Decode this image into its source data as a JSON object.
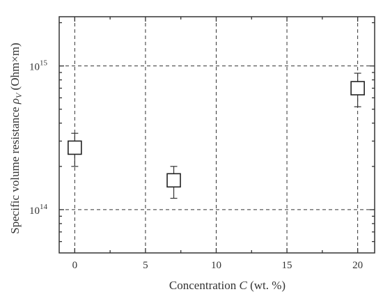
{
  "chart_data": {
    "type": "scatter",
    "xlabel_prefix": "Concentration ",
    "xlabel_var": "C",
    "xlabel_suffix": " (wt. %)",
    "ylabel_prefix": "Specific volume resistance ",
    "ylabel_var": "ρ",
    "ylabel_sub": "V",
    "ylabel_suffix": " (Ohm×m)",
    "x_ticks": [
      0,
      5,
      10,
      15,
      20
    ],
    "y_ticks": [
      {
        "value": 100000000000000.0,
        "base": "10",
        "exp": "14"
      },
      {
        "value": 1000000000000000.0,
        "base": "10",
        "exp": "15"
      }
    ],
    "xlim": [
      -1.1,
      21.2
    ],
    "ylim": [
      50000000000000.0,
      2200000000000000.0
    ],
    "y_scale": "log",
    "grid": true,
    "points": [
      {
        "x": 0,
        "y": 270000000000000.0,
        "err_low": 200000000000000.0,
        "err_high": 340000000000000.0
      },
      {
        "x": 7,
        "y": 160000000000000.0,
        "err_low": 120000000000000.0,
        "err_high": 200000000000000.0
      },
      {
        "x": 20,
        "y": 700000000000000.0,
        "err_low": 520000000000000.0,
        "err_high": 890000000000000.0
      }
    ],
    "marker": "open-square"
  }
}
